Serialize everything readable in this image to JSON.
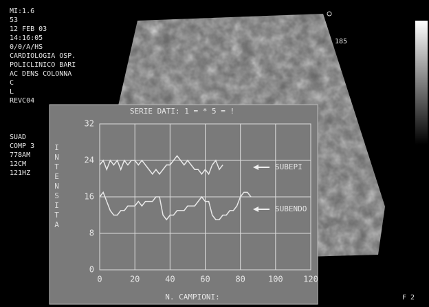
{
  "overlay_text": {
    "left": [
      "MI:1.6",
      "53",
      "12 FEB  03",
      "14:16:05",
      "0/0/A/HS",
      "CARDIOLOGIA OSP.",
      "POLICLINICO BARI",
      "AC DENS COLONNA",
      "C",
      "L",
      "REVC04",
      "SUAD",
      "COMP 3",
      "778AM",
      "12CM",
      "121HZ"
    ],
    "right": [
      "185"
    ],
    "corner": [
      "F 2"
    ]
  },
  "chart_data": {
    "type": "line",
    "title": "SERIE DATI: 1 = * 5 = !",
    "x_label": "N. CAMPIONI:",
    "y_label": "INTENSITA",
    "xlim": [
      0,
      120
    ],
    "xticks": [
      0,
      20,
      40,
      60,
      80,
      100,
      120
    ],
    "ylim": [
      0,
      32
    ],
    "yticks": [
      0,
      8,
      16,
      24,
      32
    ],
    "grid": true,
    "series": [
      {
        "name": "SUBEPI",
        "color": "#e8e8e8",
        "x": [
          0,
          2,
          4,
          6,
          8,
          10,
          12,
          14,
          16,
          18,
          20,
          22,
          24,
          26,
          28,
          30,
          32,
          34,
          36,
          38,
          40,
          42,
          44,
          46,
          48,
          50,
          52,
          54,
          56,
          58,
          60,
          62,
          64,
          66,
          68,
          70
        ],
        "values": [
          23,
          24,
          22,
          24,
          23,
          24,
          22,
          24,
          23,
          24,
          24,
          23,
          24,
          23,
          22,
          21,
          22,
          21,
          22,
          23,
          23,
          24,
          25,
          24,
          23,
          24,
          23,
          22,
          22,
          21,
          22,
          21,
          23,
          24,
          22,
          23
        ]
      },
      {
        "name": "SUBENDO",
        "color": "#e8e8e8",
        "x": [
          0,
          2,
          4,
          6,
          8,
          10,
          12,
          14,
          16,
          18,
          20,
          22,
          24,
          26,
          28,
          30,
          32,
          34,
          36,
          38,
          40,
          42,
          44,
          46,
          48,
          50,
          52,
          54,
          56,
          58,
          60,
          62,
          64,
          66,
          68,
          70,
          72,
          74,
          76,
          78,
          80,
          82,
          84,
          86
        ],
        "values": [
          16,
          17,
          15,
          13,
          12,
          12,
          13,
          13,
          14,
          14,
          14,
          15,
          14,
          15,
          15,
          15,
          16,
          16,
          12,
          11,
          12,
          12,
          13,
          13,
          13,
          14,
          14,
          14,
          15,
          16,
          15,
          15,
          12,
          11,
          11,
          12,
          12,
          13,
          13,
          14,
          16,
          17,
          17,
          16
        ]
      }
    ]
  }
}
